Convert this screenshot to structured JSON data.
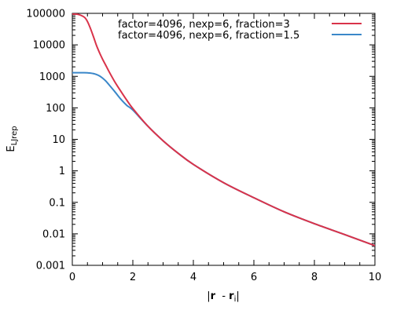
{
  "chart_data": {
    "type": "line",
    "xlabel_parts": [
      "|",
      "r",
      "  - ",
      "r",
      "i",
      "|"
    ],
    "ylabel_main": "E",
    "ylabel_sub": "LJrep",
    "xlim": [
      0,
      10
    ],
    "ylim": [
      0.001,
      100000
    ],
    "yscale": "log",
    "xticks": [
      "0",
      "2",
      "4",
      "6",
      "8",
      "10"
    ],
    "yticks": [
      "0.001",
      "0.01",
      "0.1",
      "1",
      "10",
      "100",
      "1000",
      "10000",
      "100000"
    ],
    "grid": false,
    "legend_position": "top-right",
    "series": [
      {
        "name": "factor=4096, nexp=6, fraction=3",
        "color": "#d9334a",
        "x": [
          0,
          0.2,
          0.4,
          0.5,
          0.6,
          0.7,
          0.8,
          0.9,
          1.0,
          1.1,
          1.2,
          1.4,
          1.6,
          1.8,
          2.0,
          2.5,
          3,
          3.5,
          4,
          5,
          6,
          7,
          8,
          9,
          10
        ],
        "y": [
          95000,
          92000,
          75000,
          55000,
          33000,
          18000,
          9500,
          5600,
          3500,
          2300,
          1500,
          680,
          340,
          175,
          95,
          26,
          9.0,
          3.6,
          1.6,
          0.42,
          0.14,
          0.05,
          0.021,
          0.0095,
          0.0042
        ]
      },
      {
        "name": "factor=4096, nexp=6, fraction=1.5",
        "color": "#3a87c9",
        "x": [
          0,
          0.2,
          0.4,
          0.5,
          0.6,
          0.7,
          0.8,
          0.9,
          1.0,
          1.1,
          1.2,
          1.4,
          1.6,
          1.8,
          2.0,
          2.5,
          3,
          3.5,
          4,
          5,
          6,
          7,
          8,
          9,
          10
        ],
        "y": [
          1300,
          1300,
          1300,
          1290,
          1270,
          1220,
          1140,
          1030,
          880,
          720,
          560,
          330,
          190,
          120,
          85,
          26,
          9.0,
          3.6,
          1.6,
          0.42,
          0.14,
          0.05,
          0.021,
          0.0095,
          0.0042
        ]
      }
    ]
  }
}
